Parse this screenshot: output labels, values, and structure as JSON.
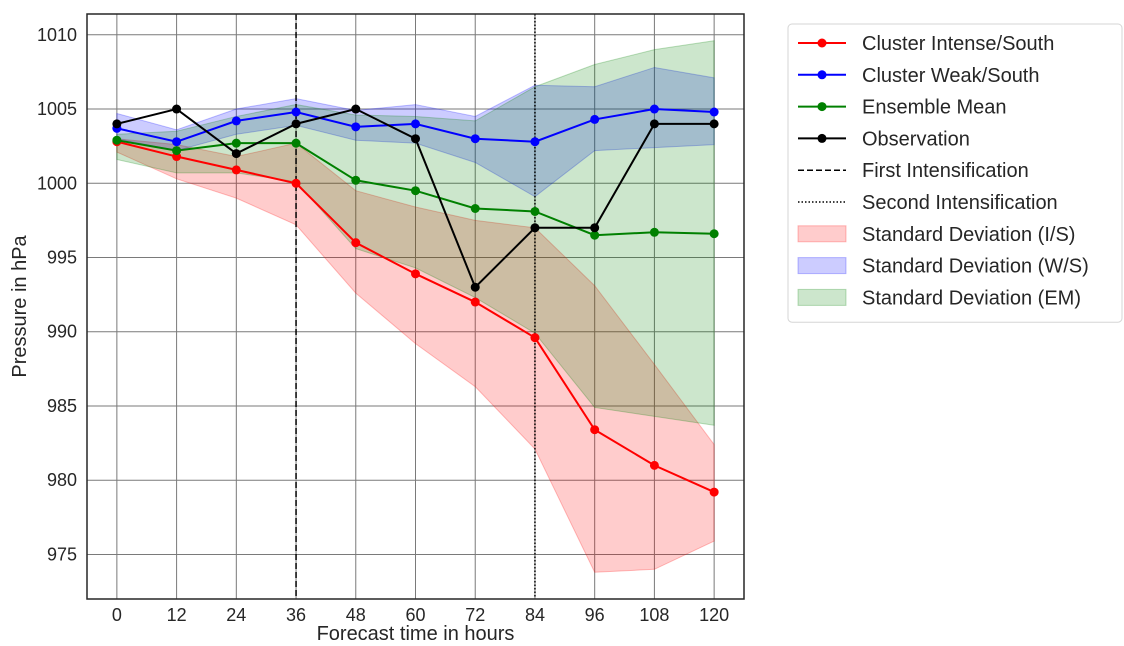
{
  "chart_data": {
    "type": "line",
    "xlabel": "Forecast time in hours",
    "ylabel": "Pressure in hPa",
    "x": [
      0,
      12,
      24,
      36,
      48,
      60,
      72,
      84,
      96,
      108,
      120
    ],
    "x_ticks": [
      "0",
      "12",
      "24",
      "36",
      "48",
      "60",
      "72",
      "84",
      "96",
      "108",
      "120"
    ],
    "y_ticks": [
      "975",
      "980",
      "985",
      "990",
      "995",
      "1000",
      "1005",
      "1010"
    ],
    "y_tick_values": [
      975,
      980,
      985,
      990,
      995,
      1000,
      1005,
      1010
    ],
    "xlim": [
      -6,
      126
    ],
    "ylim": [
      972,
      1011.4
    ],
    "grid": true,
    "legend_placement": "outside-right-top",
    "series": [
      {
        "name": "Cluster Intense/South",
        "color": "#ff0000",
        "values": [
          1002.8,
          1001.8,
          1000.9,
          1000.0,
          996.0,
          993.9,
          992.0,
          989.6,
          983.4,
          981.0,
          979.2
        ]
      },
      {
        "name": "Cluster Weak/South",
        "color": "#0000ff",
        "values": [
          1003.7,
          1002.8,
          1004.2,
          1004.8,
          1003.8,
          1004.0,
          1003.0,
          1002.8,
          1004.3,
          1005.0,
          1004.8
        ]
      },
      {
        "name": "Ensemble Mean",
        "color": "#008000",
        "values": [
          1002.9,
          1002.2,
          1002.7,
          1002.7,
          1000.2,
          999.5,
          998.3,
          998.1,
          996.5,
          996.7,
          996.6
        ]
      },
      {
        "name": "Observation",
        "color": "#000000",
        "values": [
          1004.0,
          1005.0,
          1002.0,
          1004.0,
          1005.0,
          1003.0,
          993.0,
          997.0,
          997.0,
          1004.0,
          1004.0
        ]
      }
    ],
    "bands": [
      {
        "name": "Standard Deviation (I/S)",
        "color": "#ff0000",
        "opacity": 0.2,
        "upper": [
          1003.0,
          1002.6,
          1001.8,
          1002.7,
          999.5,
          998.4,
          997.5,
          997.0,
          993.1,
          987.8,
          982.4
        ],
        "lower": [
          1002.1,
          1000.3,
          999.0,
          997.2,
          992.6,
          989.2,
          986.3,
          982.1,
          973.8,
          974.0,
          975.9
        ]
      },
      {
        "name": "Standard Deviation (W/S)",
        "color": "#0000ff",
        "opacity": 0.2,
        "upper": [
          1004.7,
          1003.6,
          1005.0,
          1005.7,
          1004.9,
          1005.3,
          1004.5,
          1006.6,
          1006.5,
          1007.8,
          1007.1
        ]
      },
      {
        "name": "Standard Deviation (EM)",
        "color": "#008000",
        "opacity": 0.2,
        "upper": [
          1003.3,
          1003.5,
          1004.5,
          1005.3,
          1004.6,
          1004.5,
          1004.2,
          1006.5,
          1008.0,
          1009.0,
          1009.6
        ],
        "lower": [
          1001.6,
          1000.7,
          1000.7,
          1000.1,
          995.6,
          994.3,
          992.3,
          989.9,
          984.9,
          984.3,
          983.7
        ]
      }
    ],
    "reference_lines": [
      {
        "name": "First Intensification",
        "x": 36,
        "style": "dashed"
      },
      {
        "name": "Second Intensification",
        "x": 84,
        "style": "dotted"
      }
    ],
    "legend": [
      {
        "label": "Cluster Intense/South",
        "kind": "line",
        "color": "#ff0000"
      },
      {
        "label": "Cluster Weak/South",
        "kind": "line",
        "color": "#0000ff"
      },
      {
        "label": "Ensemble Mean",
        "kind": "line",
        "color": "#008000"
      },
      {
        "label": "Observation",
        "kind": "line",
        "color": "#000000"
      },
      {
        "label": "First Intensification",
        "kind": "dashed",
        "color": "#000000"
      },
      {
        "label": "Second Intensification",
        "kind": "dotted",
        "color": "#000000"
      },
      {
        "label": "Standard Deviation (I/S)",
        "kind": "patch",
        "color": "#ff0000"
      },
      {
        "label": "Standard Deviation (W/S)",
        "kind": "patch",
        "color": "#0000ff"
      },
      {
        "label": "Standard Deviation (EM)",
        "kind": "patch",
        "color": "#008000"
      }
    ]
  }
}
